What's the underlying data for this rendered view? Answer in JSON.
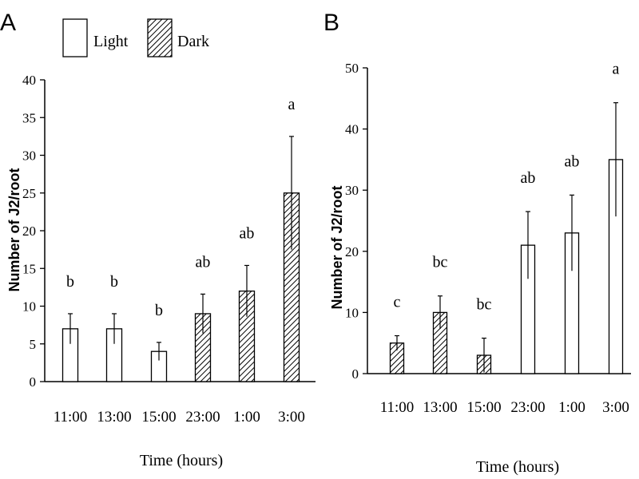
{
  "legend": {
    "light_label": "Light",
    "dark_label": "Dark"
  },
  "chart_data": [
    {
      "type": "bar",
      "panel_label": "A",
      "xlabel": "Time (hours)",
      "ylabel": "Number of J2/root",
      "ylim": [
        0,
        40
      ],
      "yticks": [
        0,
        5,
        10,
        15,
        20,
        25,
        30,
        35,
        40
      ],
      "legend_position": "top",
      "categories": [
        "11:00",
        "13:00",
        "15:00",
        "23:00",
        "1:00",
        "3:00"
      ],
      "values": [
        7,
        7,
        4,
        9,
        12,
        25
      ],
      "errors": [
        2,
        2,
        1.2,
        2.6,
        3.4,
        7.5
      ],
      "fills": [
        "light",
        "light",
        "light",
        "dark",
        "dark",
        "dark"
      ],
      "letters": [
        "b",
        "b",
        "b",
        "ab",
        "ab",
        "a"
      ]
    },
    {
      "type": "bar",
      "panel_label": "B",
      "xlabel": "Time (hours)",
      "ylabel": "Number of J2/root",
      "ylim": [
        0,
        50
      ],
      "yticks": [
        0,
        10,
        20,
        30,
        40,
        50
      ],
      "categories": [
        "11:00",
        "13:00",
        "15:00",
        "23:00",
        "1:00",
        "3:00"
      ],
      "values": [
        5,
        10,
        3,
        21,
        23,
        35
      ],
      "errors": [
        1.2,
        2.7,
        2.8,
        5.5,
        6.2,
        9.3
      ],
      "fills": [
        "dark",
        "dark",
        "dark",
        "light",
        "light",
        "light"
      ],
      "letters": [
        "c",
        "bc",
        "bc",
        "ab",
        "ab",
        "a"
      ]
    }
  ]
}
